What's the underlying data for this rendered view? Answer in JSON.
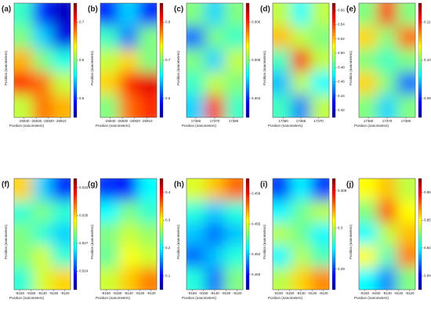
{
  "panels": [
    {
      "label": "(a)",
      "xlabel": "Position (nanometers)",
      "ylabel": "Position (nanometers)",
      "xlim": [
        -25948,
        -25902
      ],
      "xticks": [
        -25940,
        -25930,
        -25920,
        -25910
      ],
      "clim": [
        0.45,
        0.75
      ],
      "cticks": [
        0.7,
        0.6,
        0.5
      ],
      "grid": [
        [
          0.58,
          0.5,
          0.47
        ],
        [
          0.6,
          0.55,
          0.48
        ],
        [
          0.66,
          0.6,
          0.57
        ],
        [
          0.7,
          0.68,
          0.62
        ],
        [
          0.62,
          0.68,
          0.66
        ]
      ]
    },
    {
      "label": "(b)",
      "xlabel": "Position (nanometers)",
      "ylabel": "Position (nanometers)",
      "xlim": [
        -25948,
        -25902
      ],
      "xticks": [
        -25940,
        -25930,
        -25920,
        -25910
      ],
      "clim": [
        0.55,
        0.85
      ],
      "cticks": [
        0.8,
        0.7,
        0.6
      ],
      "grid": [
        [
          0.6,
          0.65,
          0.6
        ],
        [
          0.68,
          0.62,
          0.7
        ],
        [
          0.72,
          0.75,
          0.7
        ],
        [
          0.75,
          0.8,
          0.82
        ],
        [
          0.7,
          0.78,
          0.8
        ]
      ]
    },
    {
      "label": "(c)",
      "xlabel": "Position (nanometers)",
      "ylabel": "Position (nanometers)",
      "xlim": [
        17355,
        17385
      ],
      "xticks": [
        17360,
        17370,
        17380
      ],
      "clim": [
        0.0035,
        0.0065
      ],
      "cticks": [
        0.006,
        0.005,
        0.004
      ],
      "grid": [
        [
          0.005,
          0.0045,
          0.005
        ],
        [
          0.0042,
          0.005,
          0.0048
        ],
        [
          0.005,
          0.0045,
          0.0052
        ],
        [
          0.0048,
          0.0052,
          0.005
        ],
        [
          0.0045,
          0.006,
          0.0048
        ]
      ]
    },
    {
      "label": "(d)",
      "xlabel": "Position (nanometers)",
      "ylabel": "Position (nanometers)",
      "xlim": [
        17357,
        17373
      ],
      "xticks": [
        17360,
        17365,
        17370
      ],
      "clim": [
        0.41,
        0.57
      ],
      "cticks": [
        0.56,
        0.54,
        0.52,
        {
          "value": 0.5,
          "label": "0.50"
        },
        0.48,
        0.46,
        0.44,
        0.42
      ],
      "grid": [
        [
          0.5,
          0.47,
          0.5
        ],
        [
          0.52,
          0.5,
          0.49
        ],
        [
          0.48,
          0.55,
          0.5
        ],
        [
          0.46,
          0.5,
          0.47
        ],
        [
          0.48,
          0.45,
          0.5
        ]
      ]
    },
    {
      "label": "(e)",
      "xlabel": "Position (nanometers)",
      "ylabel": "Position (nanometers)",
      "xlim": [
        17355,
        17385
      ],
      "xticks": [
        17360,
        17370,
        17380
      ],
      "clim": [
        0.085,
        0.115
      ],
      "cticks": [
        0.11,
        {
          "value": 0.1,
          "label": "0.10"
        },
        0.09
      ],
      "grid": [
        [
          0.1,
          0.11,
          0.1
        ],
        [
          0.105,
          0.1,
          0.108
        ],
        [
          0.1,
          0.098,
          0.1
        ],
        [
          0.105,
          0.1,
          0.092
        ],
        [
          0.1,
          0.095,
          0.1
        ]
      ]
    },
    {
      "label": "(f)",
      "xlabel": "Position (nanometers)",
      "ylabel": "Position (nanometers)",
      "xlim": [
        -9165,
        -9115
      ],
      "xticks": [
        -9160,
        -9150,
        -9140,
        -9130,
        -9120
      ],
      "clim": [
        0.022,
        0.034
      ],
      "cticks": [
        0.033,
        {
          "value": 0.03,
          "label": "0.030"
        },
        0.027,
        0.024
      ],
      "grid": [
        [
          0.03,
          0.026,
          0.024
        ],
        [
          0.027,
          0.028,
          0.027
        ],
        [
          0.028,
          0.027,
          0.026
        ],
        [
          0.028,
          0.029,
          0.027
        ],
        [
          0.027,
          0.029,
          0.03
        ]
      ]
    },
    {
      "label": "(g)",
      "xlabel": "Position (nanometers)",
      "ylabel": "Position (nanometers)",
      "xlim": [
        -9165,
        -9115
      ],
      "xticks": [
        -9160,
        -9150,
        -9140,
        -9130,
        -9120
      ],
      "clim": [
        0.05,
        0.45
      ],
      "cticks": [
        0.4,
        0.3,
        0.2,
        0.1
      ],
      "grid": [
        [
          0.12,
          0.1,
          0.2
        ],
        [
          0.2,
          0.25,
          0.22
        ],
        [
          0.25,
          0.28,
          0.26
        ],
        [
          0.24,
          0.3,
          0.28
        ],
        [
          0.28,
          0.32,
          0.35
        ]
      ]
    },
    {
      "label": "(h)",
      "xlabel": "Position (nanometers)",
      "ylabel": "Position (nanometers)",
      "xlim": [
        -9165,
        -9115
      ],
      "xticks": [
        -9160,
        -9150,
        -9140,
        -9130,
        -9120
      ],
      "clim": [
        0.4485,
        0.4595
      ],
      "cticks": [
        0.458,
        0.455,
        0.452,
        {
          "value": 0.45,
          "label": "0.450"
        }
      ],
      "grid": [
        [
          0.455,
          0.456,
          0.457
        ],
        [
          0.453,
          0.452,
          0.453
        ],
        [
          0.452,
          0.451,
          0.452
        ],
        [
          0.451,
          0.452,
          0.453
        ],
        [
          0.453,
          0.451,
          0.454
        ]
      ]
    },
    {
      "label": "(i)",
      "xlabel": "Position (nanometers)",
      "ylabel": "Position (nanometers)",
      "xlim": [
        -9165,
        -9115
      ],
      "xticks": [
        -9160,
        -9150,
        -9140,
        -9130,
        -9120
      ],
      "clim": [
        0.285,
        0.312
      ],
      "cticks": [
        0.309,
        0.3,
        0.29
      ],
      "grid": [
        [
          0.29,
          0.295,
          0.29
        ],
        [
          0.295,
          0.298,
          0.3
        ],
        [
          0.3,
          0.298,
          0.295
        ],
        [
          0.295,
          0.3,
          0.297
        ],
        [
          0.3,
          0.303,
          0.305
        ]
      ]
    },
    {
      "label": "(j)",
      "xlabel": "Position (nanometers)",
      "ylabel": "Position (nanometers)",
      "xlim": [
        -9165,
        -9115
      ],
      "xticks": [
        -9160,
        -9150,
        -9140,
        -9130,
        -9120
      ],
      "clim": [
        0.842,
        0.858
      ],
      "cticks": [
        0.856,
        0.852,
        0.848,
        0.844
      ],
      "grid": [
        [
          0.852,
          0.853,
          0.851
        ],
        [
          0.85,
          0.855,
          0.852
        ],
        [
          0.848,
          0.851,
          0.853
        ],
        [
          0.852,
          0.849,
          0.854
        ],
        [
          0.848,
          0.846,
          0.85
        ]
      ]
    }
  ]
}
